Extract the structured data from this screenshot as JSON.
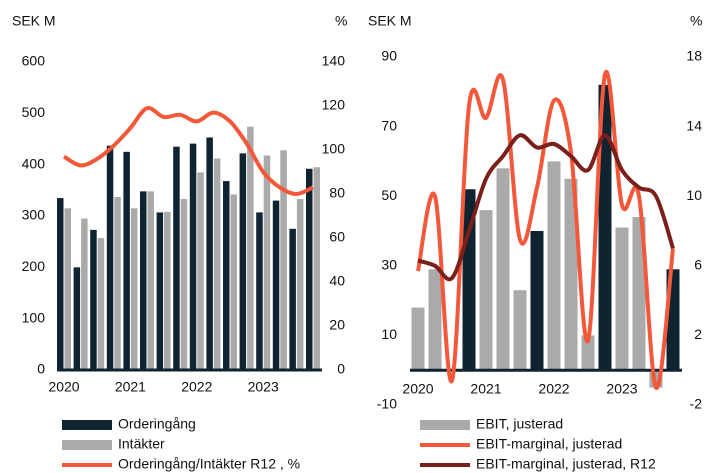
{
  "chart_data": [
    {
      "type": "bar",
      "categories": [
        "2020",
        null,
        null,
        null,
        "2021",
        null,
        null,
        null,
        "2022",
        null,
        null,
        null,
        "2023",
        null,
        null,
        null
      ],
      "y_label": "SEK M",
      "y2_label": "%",
      "ylim": [
        0,
        600
      ],
      "yticks": [
        0,
        100,
        200,
        300,
        400,
        500,
        600
      ],
      "y2lim": [
        0,
        140
      ],
      "y2ticks": [
        0,
        20,
        40,
        60,
        80,
        100,
        120,
        140
      ],
      "series": [
        {
          "name": "Orderingång",
          "type": "bar",
          "color": "#0f2430",
          "values": [
            335,
            200,
            273,
            437,
            425,
            348,
            307,
            435,
            441,
            453,
            368,
            422,
            307,
            330,
            275,
            392
          ]
        },
        {
          "name": "Intäkter",
          "type": "bar",
          "color": "#aaaaaa",
          "values": [
            315,
            295,
            257,
            337,
            315,
            348,
            308,
            333,
            385,
            412,
            342,
            474,
            418,
            428,
            333,
            395
          ]
        },
        {
          "name": "Orderingång/Intäkter R12 , %",
          "type": "line",
          "axis": "y2",
          "color": "#f4583a",
          "values": [
            97,
            93,
            96,
            102,
            110,
            119,
            115,
            116,
            113,
            117,
            113,
            103,
            90,
            83,
            80,
            83
          ]
        }
      ]
    },
    {
      "type": "bar",
      "categories": [
        "2020",
        null,
        null,
        null,
        "2021",
        null,
        null,
        null,
        "2022",
        null,
        null,
        null,
        "2023",
        null,
        null,
        null
      ],
      "y_label": "SEK M",
      "y2_label": "%",
      "ylim": [
        -10,
        90
      ],
      "yticks": [
        -10,
        10,
        30,
        50,
        70,
        90
      ],
      "y2lim": [
        -2,
        18
      ],
      "y2ticks": [
        -2,
        2,
        6,
        10,
        14,
        18
      ],
      "series": [
        {
          "name": "EBIT, justerad",
          "type": "bar",
          "color": "#aaaaaa",
          "colors": [
            "#aaaaaa",
            "#aaaaaa",
            "#aaaaaa",
            "#0f2430",
            "#aaaaaa",
            "#aaaaaa",
            "#aaaaaa",
            "#0f2430",
            "#aaaaaa",
            "#aaaaaa",
            "#aaaaaa",
            "#0f2430",
            "#aaaaaa",
            "#aaaaaa",
            "#aaaaaa",
            "#0f2430"
          ],
          "values": [
            18,
            29,
            0,
            52,
            46,
            58,
            23,
            40,
            60,
            55,
            10,
            82,
            41,
            44,
            -5,
            29
          ]
        },
        {
          "name": "EBIT-marginal, justerad",
          "type": "line",
          "axis": "y2",
          "color": "#f4583a",
          "values": [
            5.7,
            10,
            -0.6,
            15.2,
            14.5,
            16.7,
            7.5,
            10.5,
            15.5,
            12.5,
            1.7,
            17,
            9.5,
            10,
            -1,
            7
          ]
        },
        {
          "name": "EBIT-marginal, justerad, R12",
          "type": "line",
          "axis": "y2",
          "color": "#7a1f1a",
          "values": [
            6.3,
            6,
            5.3,
            8,
            11,
            12.3,
            13.5,
            12.8,
            13,
            12.3,
            11.5,
            13.5,
            11.5,
            10.5,
            10,
            7
          ]
        }
      ]
    }
  ]
}
